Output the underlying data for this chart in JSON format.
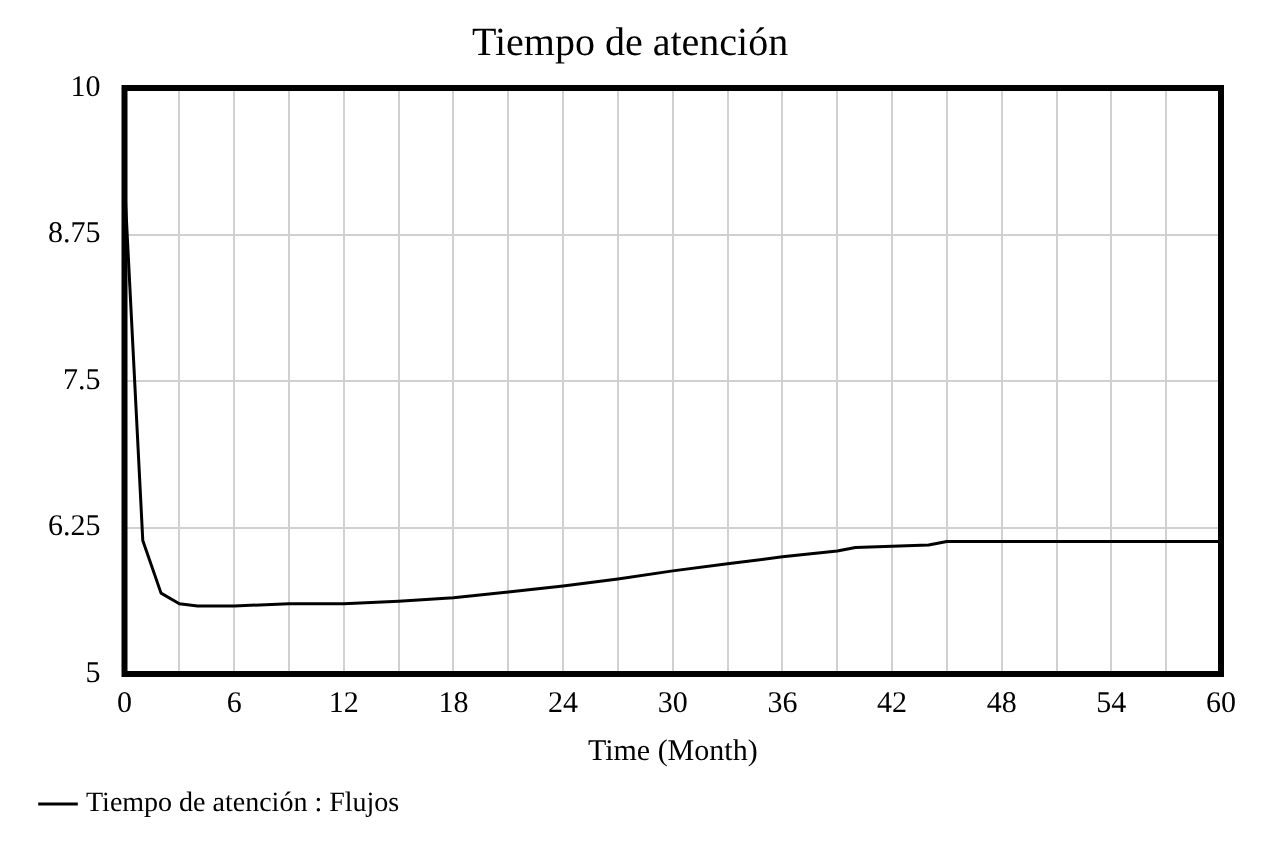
{
  "chart_data": {
    "type": "line",
    "title": "Tiempo de atención",
    "xlabel": "Time (Month)",
    "x": [
      0,
      1,
      2,
      3,
      4,
      6,
      9,
      12,
      15,
      18,
      21,
      24,
      27,
      30,
      33,
      36,
      39,
      40,
      42,
      44,
      45,
      48,
      54,
      60
    ],
    "series": [
      {
        "name": "Tiempo de atención : Flujos",
        "color": "#000000",
        "values": [
          9.2,
          6.14,
          5.69,
          5.6,
          5.58,
          5.58,
          5.6,
          5.6,
          5.62,
          5.65,
          5.7,
          5.75,
          5.81,
          5.88,
          5.94,
          6.0,
          6.05,
          6.08,
          6.09,
          6.1,
          6.13,
          6.13,
          6.13,
          6.13
        ]
      }
    ],
    "xlim": [
      0,
      60
    ],
    "xticks": [
      0,
      {
        "value": 3,
        "label": null
      },
      6,
      {
        "value": 9,
        "label": null
      },
      12,
      {
        "value": 15,
        "label": null
      },
      18,
      {
        "value": 21,
        "label": null
      },
      24,
      {
        "value": 27,
        "label": null
      },
      30,
      {
        "value": 33,
        "label": null
      },
      36,
      {
        "value": 39,
        "label": null
      },
      42,
      {
        "value": 45,
        "label": null
      },
      48,
      {
        "value": 51,
        "label": null
      },
      54,
      {
        "value": 57,
        "label": null
      },
      60
    ],
    "ylim": [
      5,
      10
    ],
    "yticks": [
      5,
      6.25,
      7.5,
      8.75,
      10
    ],
    "grid": true,
    "legend": "bottom left",
    "marker": "none",
    "line_style": "solid"
  }
}
